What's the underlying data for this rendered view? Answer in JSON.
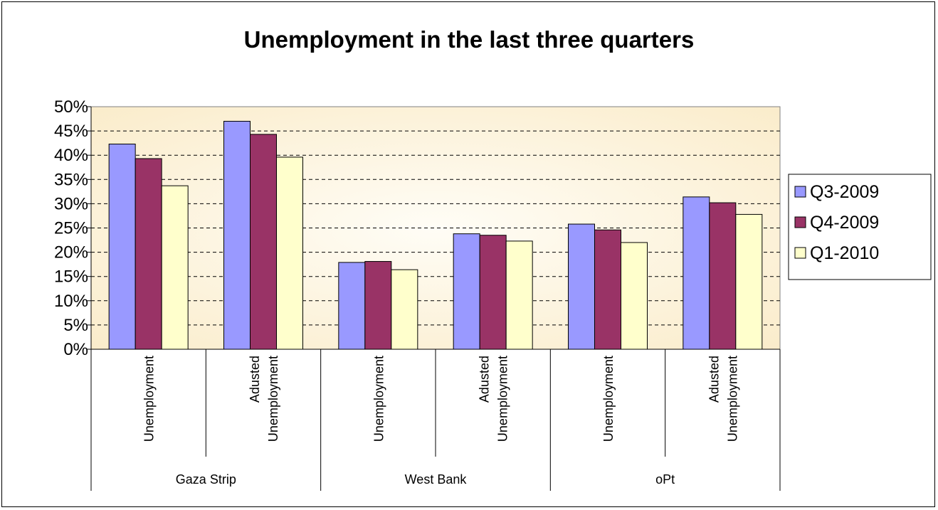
{
  "chart_data": {
    "type": "bar",
    "title": "Unemployment in the last three quarters",
    "xlabel": "",
    "ylabel": "",
    "ylim": [
      0,
      50
    ],
    "yticks": [
      "0%",
      "5%",
      "10%",
      "15%",
      "20%",
      "25%",
      "30%",
      "35%",
      "40%",
      "45%",
      "50%"
    ],
    "grid": true,
    "legend_position": "right",
    "groups": [
      {
        "label": "Gaza Strip",
        "categories": [
          "0",
          "1"
        ]
      },
      {
        "label": "West Bank",
        "categories": [
          "2",
          "3"
        ]
      },
      {
        "label": "oPt",
        "categories": [
          "4",
          "5"
        ]
      }
    ],
    "categories": [
      [
        "Unemployment"
      ],
      [
        "Adusted",
        "Unemployment"
      ],
      [
        "Unemployment"
      ],
      [
        "Adusted",
        "Unemployment"
      ],
      [
        "Unemployment"
      ],
      [
        "Adusted",
        "Unemployment"
      ]
    ],
    "series": [
      {
        "name": "Q3-2009",
        "color": "#9999ff",
        "values": [
          42.3,
          47.0,
          17.9,
          23.8,
          25.8,
          31.4
        ]
      },
      {
        "name": "Q4-2009",
        "color": "#993366",
        "values": [
          39.3,
          44.3,
          18.1,
          23.5,
          24.6,
          30.2
        ]
      },
      {
        "name": "Q1-2010",
        "color": "#ffffcc",
        "values": [
          33.7,
          39.6,
          16.4,
          22.3,
          22.0,
          27.8
        ]
      }
    ],
    "plot_background": "#faebc8"
  }
}
